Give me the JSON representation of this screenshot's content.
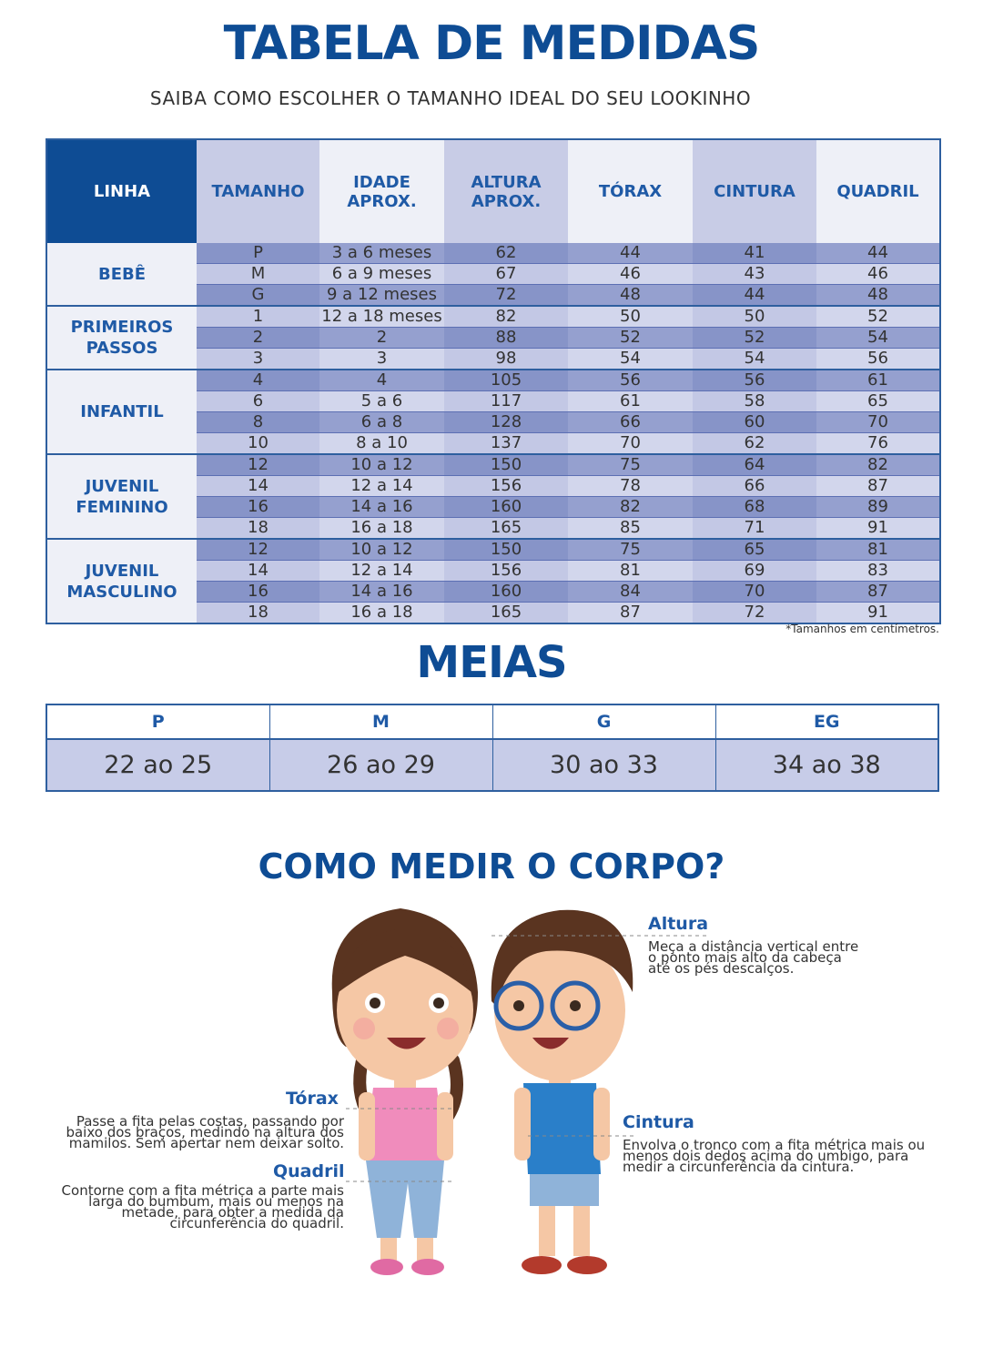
{
  "header": {
    "title": "TABELA DE MEDIDAS",
    "subtitle": "SAIBA COMO ESCOLHER O TAMANHO IDEAL DO SEU LOOKINHO"
  },
  "table": {
    "columns": [
      "LINHA",
      "TAMANHO",
      "IDADE APROX.",
      "ALTURA APROX.",
      "TÓRAX",
      "CINTURA",
      "QUADRIL"
    ],
    "groups": [
      {
        "label": "BEBÊ",
        "rows": [
          [
            "P",
            "3 a 6 meses",
            62,
            44,
            41,
            44
          ],
          [
            "M",
            "6 a 9 meses",
            67,
            46,
            43,
            46
          ],
          [
            "G",
            "9 a 12 meses",
            72,
            48,
            44,
            48
          ]
        ]
      },
      {
        "label": "PRIMEIROS PASSOS",
        "rows": [
          [
            1,
            "12 a 18 meses",
            82,
            50,
            50,
            52
          ],
          [
            2,
            "2",
            88,
            52,
            52,
            54
          ],
          [
            3,
            "3",
            98,
            54,
            54,
            56
          ]
        ]
      },
      {
        "label": "INFANTIL",
        "rows": [
          [
            4,
            "4",
            105,
            56,
            56,
            61
          ],
          [
            6,
            "5 a 6",
            117,
            61,
            58,
            65
          ],
          [
            8,
            "6 a 8",
            128,
            66,
            60,
            70
          ],
          [
            10,
            "8 a 10",
            137,
            70,
            62,
            76
          ]
        ]
      },
      {
        "label": "JUVENIL FEMININO",
        "rows": [
          [
            12,
            "10 a 12",
            150,
            75,
            64,
            82
          ],
          [
            14,
            "12 a 14",
            156,
            78,
            66,
            87
          ],
          [
            16,
            "14 a 16",
            160,
            82,
            68,
            89
          ],
          [
            18,
            "16 a 18",
            165,
            85,
            71,
            91
          ]
        ]
      },
      {
        "label": "JUVENIL MASCULINO",
        "rows": [
          [
            12,
            "10 a 12",
            150,
            75,
            65,
            81
          ],
          [
            14,
            "12 a 14",
            156,
            81,
            69,
            83
          ],
          [
            16,
            "14 a 16",
            160,
            84,
            70,
            87
          ],
          [
            18,
            "16 a 18",
            165,
            87,
            72,
            91
          ]
        ]
      }
    ],
    "note": "*Tamanhos em centímetros."
  },
  "meias": {
    "title": "MEIAS",
    "sizes": [
      "P",
      "M",
      "G",
      "EG"
    ],
    "ranges": [
      "22 ao 25",
      "26 ao 29",
      "30 ao 33",
      "34 ao 38"
    ]
  },
  "how_to": {
    "title": "COMO MEDIR O CORPO?",
    "items": [
      {
        "label": "Altura",
        "text": "Meça a distância vertical entre o ponto mais alto da cabeça até os pés descalços."
      },
      {
        "label": "Tórax",
        "text": "Passe a fita pelas costas, passando por baixo dos braços, medindo na altura dos mamilos. Sem apertar nem deixar solto."
      },
      {
        "label": "Quadril",
        "text": "Contorne com a fita métrica a parte mais larga do bumbum, mais ou menos na metade, para obter a medida da circunferência do quadril."
      },
      {
        "label": "Cintura",
        "text": "Envolva o tronco com a fita métrica mais ou menos dois dedos acima do umbigo, para medir a circunferência da cintura."
      }
    ]
  }
}
